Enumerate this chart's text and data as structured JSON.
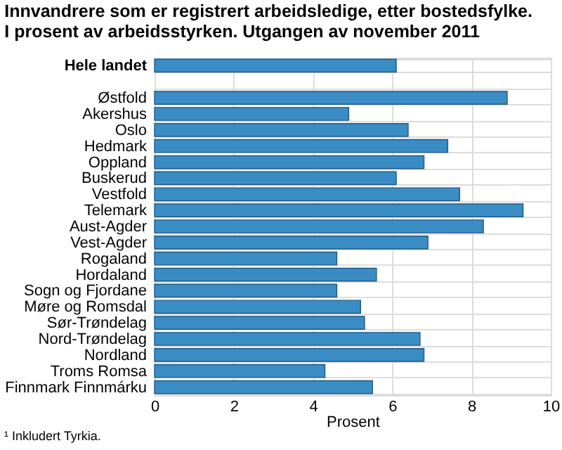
{
  "chart_data": {
    "type": "bar",
    "orientation": "horizontal",
    "title": "Innvandrere som er registrert arbeidsledige, etter bostedsfylke.\nI prosent av arbeidsstyrken. Utgangen av november 2011",
    "xlabel": "Prosent",
    "categories": [
      "Hele landet",
      null,
      "Østfold",
      "Akershus",
      "Oslo",
      "Hedmark",
      "Oppland",
      "Buskerud",
      "Vestfold",
      "Telemark",
      "Aust-Agder",
      "Vest-Agder",
      "Rogaland",
      "Hordaland",
      "Sogn og Fjordane",
      "Møre og Romsdal",
      "Sør-Trøndelag",
      "Nord-Trøndelag",
      "Nordland",
      "Troms Romsa",
      "Finnmark Finnmárku"
    ],
    "values": [
      6.1,
      null,
      8.9,
      4.9,
      6.4,
      7.4,
      6.8,
      6.1,
      7.7,
      9.3,
      8.3,
      6.9,
      4.6,
      5.6,
      4.6,
      5.2,
      5.3,
      6.7,
      6.8,
      4.3,
      5.5
    ],
    "color": "#3a8cc4",
    "xlim": [
      0,
      10
    ],
    "xticks": [
      0,
      2,
      4,
      6,
      8,
      10
    ],
    "grid": true,
    "annotations": [
      "¹ Inkludert Tyrkia."
    ]
  }
}
